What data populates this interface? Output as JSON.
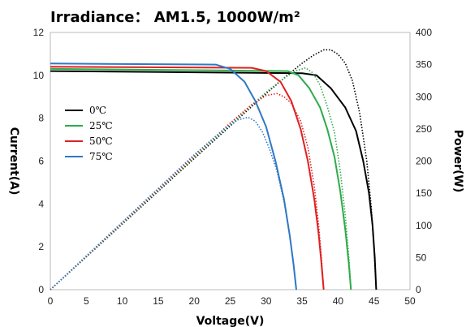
{
  "chart_data": {
    "type": "line",
    "title": "Irradiance： AM1.5, 1000W/m²",
    "xlabel": "Voltage(V)",
    "ylabel": "Current(A)",
    "y2label": "Power(W)",
    "xlim": [
      0,
      50
    ],
    "ylim": [
      0,
      12
    ],
    "y2lim": [
      0,
      400
    ],
    "x_ticks": [
      "0",
      "5",
      "10",
      "15",
      "20",
      "25",
      "30",
      "35",
      "40",
      "45",
      "50"
    ],
    "y_ticks": [
      "0",
      "2",
      "4",
      "6",
      "8",
      "10",
      "12"
    ],
    "y2_ticks": [
      "0",
      "50",
      "100",
      "150",
      "200",
      "250",
      "300",
      "350",
      "400"
    ],
    "grid": false,
    "legend_position": "left-middle",
    "series": [
      {
        "name": "0℃",
        "color": "#000000",
        "iv": [
          [
            0,
            10.2
          ],
          [
            35,
            10.1
          ],
          [
            37,
            10.0
          ],
          [
            39,
            9.4
          ],
          [
            41,
            8.5
          ],
          [
            42.5,
            7.4
          ],
          [
            43.5,
            6.0
          ],
          [
            44.3,
            4.5
          ],
          [
            44.8,
            3.0
          ],
          [
            45.1,
            1.5
          ],
          [
            45.3,
            0
          ]
        ],
        "pv": [
          [
            0,
            0
          ],
          [
            10,
            102
          ],
          [
            20,
            204
          ],
          [
            30,
            305
          ],
          [
            33,
            334
          ],
          [
            35,
            352
          ],
          [
            36.5,
            364
          ],
          [
            38,
            373
          ],
          [
            39,
            373
          ],
          [
            40,
            366
          ],
          [
            41,
            352
          ],
          [
            42,
            325
          ],
          [
            43,
            275
          ],
          [
            44,
            200
          ],
          [
            44.6,
            130
          ],
          [
            45,
            65
          ],
          [
            45.3,
            0
          ]
        ]
      },
      {
        "name": "25℃",
        "color": "#2eab4b",
        "iv": [
          [
            0,
            10.3
          ],
          [
            33,
            10.2
          ],
          [
            34.5,
            10.0
          ],
          [
            36,
            9.4
          ],
          [
            37.5,
            8.5
          ],
          [
            38.5,
            7.5
          ],
          [
            39.5,
            6.2
          ],
          [
            40.3,
            4.6
          ],
          [
            41,
            2.8
          ],
          [
            41.5,
            1.2
          ],
          [
            41.8,
            0
          ]
        ],
        "pv": [
          [
            0,
            0
          ],
          [
            10,
            103
          ],
          [
            20,
            206
          ],
          [
            30,
            307
          ],
          [
            32,
            325
          ],
          [
            34,
            340
          ],
          [
            35.5,
            345
          ],
          [
            36.5,
            337
          ],
          [
            37.5,
            318
          ],
          [
            38.5,
            285
          ],
          [
            39.5,
            245
          ],
          [
            40.3,
            185
          ],
          [
            41,
            115
          ],
          [
            41.5,
            50
          ],
          [
            41.8,
            0
          ]
        ]
      },
      {
        "name": "50℃",
        "color": "#e02020",
        "iv": [
          [
            0,
            10.4
          ],
          [
            28,
            10.35
          ],
          [
            30,
            10.2
          ],
          [
            32,
            9.7
          ],
          [
            33.5,
            8.8
          ],
          [
            34.8,
            7.5
          ],
          [
            35.8,
            6.0
          ],
          [
            36.7,
            4.2
          ],
          [
            37.3,
            2.6
          ],
          [
            37.7,
            1.2
          ],
          [
            38,
            0
          ]
        ],
        "pv": [
          [
            0,
            0
          ],
          [
            10,
            104
          ],
          [
            20,
            208
          ],
          [
            25,
            259
          ],
          [
            28,
            288
          ],
          [
            30,
            302
          ],
          [
            31.5,
            305
          ],
          [
            32.5,
            300
          ],
          [
            33.5,
            290
          ],
          [
            34.8,
            262
          ],
          [
            35.8,
            222
          ],
          [
            36.7,
            160
          ],
          [
            37.3,
            100
          ],
          [
            37.7,
            48
          ],
          [
            38,
            0
          ]
        ]
      },
      {
        "name": "75℃",
        "color": "#2f78c4",
        "iv": [
          [
            0,
            10.55
          ],
          [
            23,
            10.5
          ],
          [
            25,
            10.3
          ],
          [
            27,
            9.7
          ],
          [
            28.5,
            8.8
          ],
          [
            30,
            7.6
          ],
          [
            31.3,
            6.0
          ],
          [
            32.5,
            4.2
          ],
          [
            33.3,
            2.5
          ],
          [
            33.8,
            1.2
          ],
          [
            34.2,
            0
          ]
        ],
        "pv": [
          [
            0,
            0
          ],
          [
            10,
            105
          ],
          [
            20,
            210
          ],
          [
            24,
            248
          ],
          [
            26,
            264
          ],
          [
            27.5,
            268
          ],
          [
            28.5,
            262
          ],
          [
            29.5,
            245
          ],
          [
            30.5,
            218
          ],
          [
            31.5,
            185
          ],
          [
            32.5,
            137
          ],
          [
            33.3,
            83
          ],
          [
            33.8,
            40
          ],
          [
            34.2,
            0
          ]
        ]
      }
    ]
  }
}
